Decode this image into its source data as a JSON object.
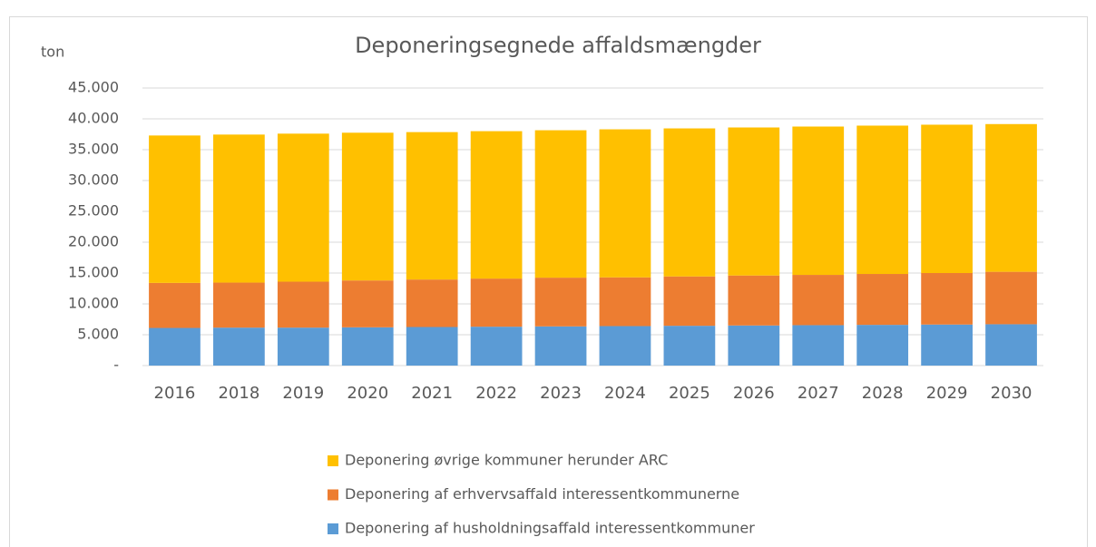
{
  "chart_data": {
    "type": "stacked_bar",
    "title": "Deponeringsegnede affaldsmængder",
    "y_label": "ton",
    "categories": [
      "2016",
      "2018",
      "2019",
      "2020",
      "2021",
      "2022",
      "2023",
      "2024",
      "2025",
      "2026",
      "2027",
      "2028",
      "2029",
      "2030"
    ],
    "series": [
      {
        "name": "Deponering af husholdningsaffald interessentkommuner",
        "color": "#5b9bd5",
        "values": [
          6100,
          6150,
          6150,
          6200,
          6250,
          6300,
          6350,
          6400,
          6450,
          6500,
          6550,
          6600,
          6650,
          6700
        ]
      },
      {
        "name": "Deponering af erhvervsaffald interessentkommunerne",
        "color": "#ed7d31",
        "values": [
          7300,
          7300,
          7450,
          7600,
          7700,
          7800,
          7900,
          7900,
          8000,
          8100,
          8150,
          8250,
          8350,
          8500
        ]
      },
      {
        "name": "Deponering øvrige kommuner herunder ARC",
        "color": "#ffc000",
        "values": [
          23900,
          24000,
          24000,
          23950,
          23900,
          23900,
          23900,
          24000,
          24000,
          24000,
          24050,
          24050,
          24050,
          23950
        ]
      }
    ],
    "ylim": [
      0,
      45000
    ],
    "yticks": [
      {
        "value": 0,
        "label": "-"
      },
      {
        "value": 5000,
        "label": "5.000"
      },
      {
        "value": 10000,
        "label": "10.000"
      },
      {
        "value": 15000,
        "label": "15.000"
      },
      {
        "value": 20000,
        "label": "20.000"
      },
      {
        "value": 25000,
        "label": "25.000"
      },
      {
        "value": 30000,
        "label": "30.000"
      },
      {
        "value": 35000,
        "label": "35.000"
      },
      {
        "value": 40000,
        "label": "40.000"
      },
      {
        "value": 45000,
        "label": "45.000"
      }
    ],
    "grid": true,
    "legend": "bottom"
  }
}
